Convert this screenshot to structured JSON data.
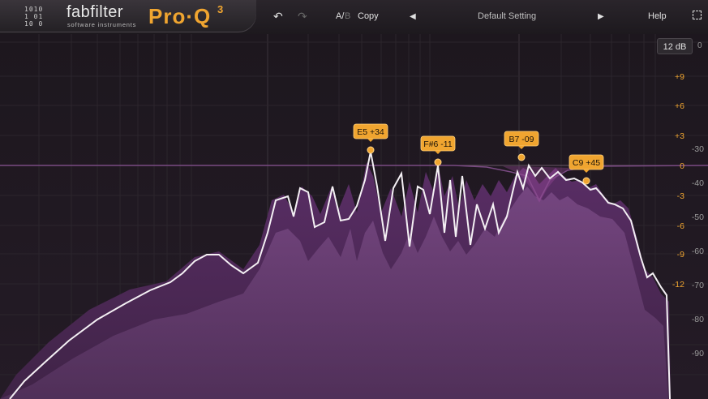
{
  "header": {
    "brand_mark": "1010\n1 01\n10 0",
    "brand_name": "fabfilter",
    "brand_sub": "software instruments",
    "product_name": "Pro·Q",
    "product_version": "3",
    "undo_icon": "undo-icon",
    "redo_icon": "redo-icon",
    "ab_a": "A/",
    "ab_b": "B",
    "copy_label": "Copy",
    "prev_preset_icon": "triangle-left-icon",
    "preset_name": "Default Setting",
    "next_preset_icon": "triangle-right-icon",
    "help_label": "Help",
    "fullscreen_icon": "fullscreen-icon"
  },
  "range": {
    "label": "12 dB",
    "zero": "0"
  },
  "gain_scale": [
    "+9",
    "+6",
    "+3",
    "0",
    "-3",
    "-6",
    "-9",
    "-12"
  ],
  "spectrum_scale": [
    "-30",
    "-40",
    "-50",
    "-60",
    "-70",
    "-80",
    "-90"
  ],
  "bands": [
    {
      "label": "E5 +34"
    },
    {
      "label": "F#6 -11"
    },
    {
      "label": "B7 -09"
    },
    {
      "label": "C9 +45"
    }
  ],
  "colors": {
    "accent": "#f0a530",
    "spectrum": "#7a4a85",
    "background": "#1c161d"
  }
}
